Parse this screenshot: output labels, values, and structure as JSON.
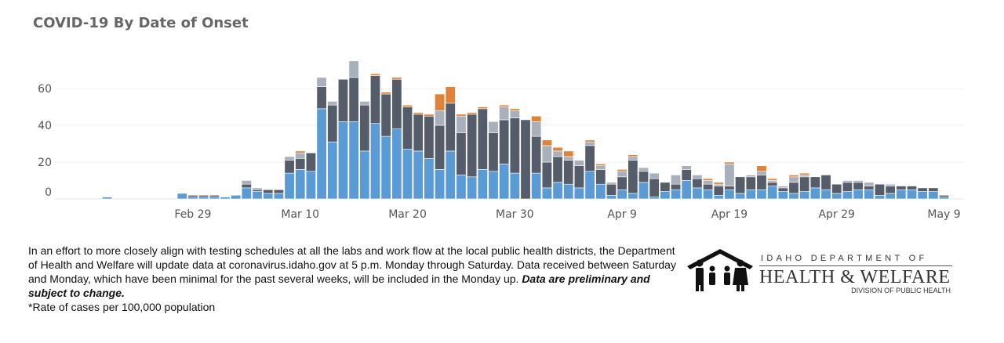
{
  "title": "COVID-19 By Date of Onset",
  "chart_data": {
    "type": "bar",
    "stacked": true,
    "x_start": "2020-02-21",
    "x": [
      "Feb 21",
      "Feb 22",
      "Feb 23",
      "Feb 24",
      "Feb 25",
      "Feb 26",
      "Feb 27",
      "Feb 28",
      "Feb 29",
      "Mar 1",
      "Mar 2",
      "Mar 3",
      "Mar 4",
      "Mar 5",
      "Mar 6",
      "Mar 7",
      "Mar 8",
      "Mar 9",
      "Mar 10",
      "Mar 11",
      "Mar 12",
      "Mar 13",
      "Mar 14",
      "Mar 15",
      "Mar 16",
      "Mar 17",
      "Mar 18",
      "Mar 19",
      "Mar 20",
      "Mar 21",
      "Mar 22",
      "Mar 23",
      "Mar 24",
      "Mar 25",
      "Mar 26",
      "Mar 27",
      "Mar 28",
      "Mar 29",
      "Mar 30",
      "Mar 31",
      "Apr 1",
      "Apr 2",
      "Apr 3",
      "Apr 4",
      "Apr 5",
      "Apr 6",
      "Apr 7",
      "Apr 8",
      "Apr 9",
      "Apr 10",
      "Apr 11",
      "Apr 12",
      "Apr 13",
      "Apr 14",
      "Apr 15",
      "Apr 16",
      "Apr 17",
      "Apr 18",
      "Apr 19",
      "Apr 20",
      "Apr 21",
      "Apr 22",
      "Apr 23",
      "Apr 24",
      "Apr 25",
      "Apr 26",
      "Apr 27",
      "Apr 28",
      "Apr 29",
      "Apr 30",
      "May 1",
      "May 2",
      "May 3",
      "May 4",
      "May 5",
      "May 6",
      "May 7",
      "May 8",
      "May 9",
      "May 10"
    ],
    "series": [
      {
        "color": "#5b9bd5",
        "values": [
          1,
          0,
          0,
          0,
          0,
          0,
          0,
          3,
          1,
          1,
          1,
          1,
          2,
          6,
          4,
          3,
          3,
          14,
          16,
          15,
          49,
          31,
          42,
          42,
          26,
          41,
          34,
          38,
          27,
          26,
          22,
          16,
          26,
          13,
          12,
          16,
          15,
          19,
          14,
          0,
          14,
          6,
          9,
          8,
          6,
          15,
          8,
          2,
          5,
          3,
          9,
          1,
          4,
          5,
          10,
          6,
          5,
          2,
          5,
          3,
          5,
          5,
          7,
          4,
          3,
          4,
          6,
          5,
          3,
          4,
          5,
          5,
          2,
          3,
          5,
          5,
          4,
          4,
          1,
          0
        ]
      },
      {
        "color": "#555c6a",
        "values": [
          0,
          0,
          0,
          0,
          0,
          0,
          0,
          0,
          1,
          1,
          1,
          0,
          0,
          2,
          1,
          2,
          2,
          7,
          6,
          10,
          12,
          20,
          23,
          24,
          25,
          26,
          23,
          27,
          23,
          20,
          23,
          24,
          26,
          23,
          34,
          33,
          21,
          24,
          30,
          43,
          20,
          14,
          14,
          13,
          12,
          14,
          8,
          6,
          7,
          18,
          6,
          10,
          5,
          3,
          6,
          5,
          3,
          5,
          2,
          9,
          7,
          8,
          2,
          2,
          6,
          8,
          6,
          8,
          5,
          5,
          4,
          2,
          6,
          4,
          2,
          2,
          2,
          2,
          1,
          0
        ]
      },
      {
        "color": "#a8b0bc",
        "values": [
          0,
          0,
          0,
          0,
          0,
          0,
          0,
          0,
          0,
          0,
          0,
          0,
          0,
          2,
          1,
          0,
          0,
          2,
          3,
          0,
          5,
          2,
          0,
          9,
          2,
          0,
          0,
          0,
          0,
          0,
          0,
          8,
          0,
          9,
          0,
          0,
          6,
          7,
          4,
          0,
          8,
          9,
          3,
          2,
          3,
          2,
          2,
          1,
          3,
          2,
          2,
          3,
          0,
          5,
          2,
          2,
          2,
          1,
          12,
          0,
          1,
          2,
          1,
          1,
          3,
          1,
          0,
          0,
          0,
          1,
          1,
          2,
          0,
          1,
          0,
          0,
          0,
          0,
          0,
          0
        ]
      },
      {
        "color": "#e0833a",
        "values": [
          0,
          0,
          0,
          0,
          0,
          0,
          0,
          0,
          0,
          0,
          0,
          0,
          0,
          0,
          0,
          0,
          0,
          0,
          1,
          0,
          0,
          0,
          0,
          0,
          0,
          1,
          1,
          1,
          1,
          1,
          1,
          9,
          9,
          1,
          1,
          1,
          0,
          1,
          1,
          0,
          3,
          3,
          2,
          3,
          0,
          1,
          1,
          0,
          1,
          1,
          0,
          0,
          0,
          0,
          0,
          0,
          1,
          1,
          1,
          0,
          0,
          3,
          1,
          0,
          1,
          1,
          0,
          0,
          0,
          0,
          0,
          0,
          0,
          0,
          0,
          0,
          0,
          0,
          0,
          0
        ]
      }
    ],
    "yticks": [
      0,
      20,
      40,
      60
    ],
    "ylim": [
      0,
      78
    ],
    "xticks": [
      "Feb 29",
      "Mar 10",
      "Mar 20",
      "Mar 30",
      "Apr 9",
      "Apr 19",
      "Apr 29",
      "May 9"
    ],
    "grid": true,
    "legend": "none"
  },
  "note": {
    "text": "In an effort to more closely align with testing schedules at all the labs and work flow at the local public health districts, the Department of Health and Welfare will update data at coronavirus.idaho.gov at 5 p.m. Monday through Saturday. Data received between Saturday and Monday, which have been minimal for the past several weeks, will be included in the Monday up. ",
    "emphasis": "Data are preliminary and subject to change."
  },
  "footnote": "*Rate of cases per 100,000 population",
  "logo": {
    "line1": "IDAHO DEPARTMENT OF",
    "line2": "HEALTH & WELFARE",
    "line3": "DIVISION OF PUBLIC HEALTH"
  }
}
